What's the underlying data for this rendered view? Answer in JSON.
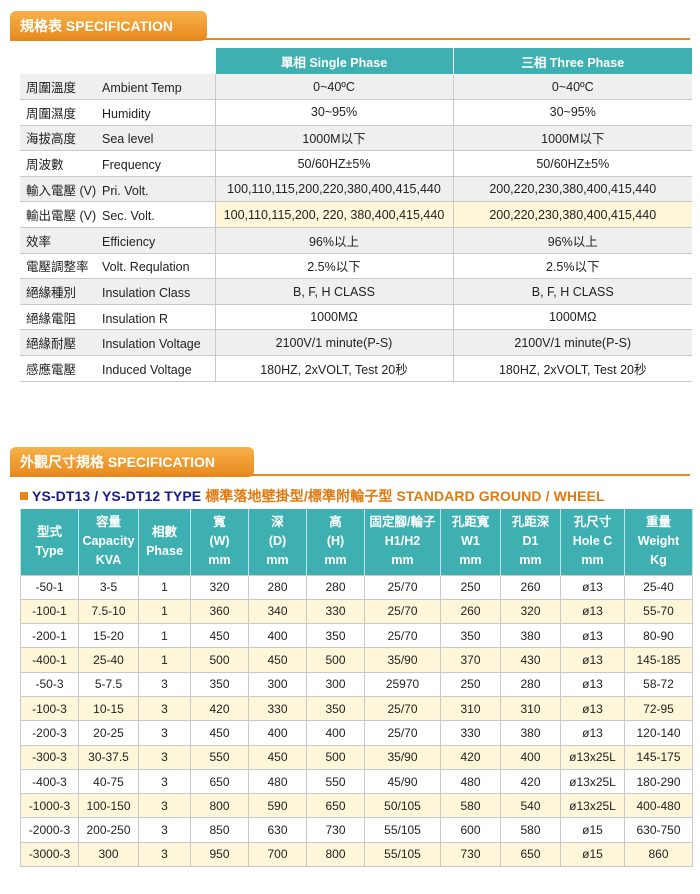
{
  "section1": {
    "title": "規格表 SPECIFICATION"
  },
  "spec_table": {
    "columns": [
      "單相 Single Phase",
      "三相 Three Phase"
    ],
    "rows": [
      {
        "zh": "周圍溫度",
        "en": "Ambient Temp",
        "single": "0~40ºC",
        "three": "0~40ºC"
      },
      {
        "zh": "周圍濕度",
        "en": "Humidity",
        "single": "30~95%",
        "three": "30~95%"
      },
      {
        "zh": "海拔高度",
        "en": "Sea level",
        "single": "1000M以下",
        "three": "1000M以下"
      },
      {
        "zh": "周波數",
        "en": "Frequency",
        "single": "50/60HZ±5%",
        "three": "50/60HZ±5%"
      },
      {
        "zh": "輸入電壓 (V)",
        "en": "Pri. Volt.",
        "single": "100,110,115,200,220,380,400,415,440",
        "three": "200,220,230,380,400,415,440"
      },
      {
        "zh": "輸出電壓 (V)",
        "en": "Sec. Volt.",
        "single": "100,110,115,200, 220, 380,400,415,440",
        "three": "200,220,230,380,400,415,440"
      },
      {
        "zh": "效率",
        "en": "Efficiency",
        "single": "96%以上",
        "three": "96%以上"
      },
      {
        "zh": "電壓調整率",
        "en": "Volt. Requlation",
        "single": "2.5%以下",
        "three": "2.5%以下"
      },
      {
        "zh": "絕緣種別",
        "en": "Insulation Class",
        "single": "B, F, H CLASS",
        "three": "B, F, H CLASS"
      },
      {
        "zh": "絕緣電阻",
        "en": "Insulation R",
        "single": "1000MΩ",
        "three": "1000MΩ"
      },
      {
        "zh": "絕緣耐壓",
        "en": "Insulation Voltage",
        "single": "2100V/1 minute(P-S)",
        "three": "2100V/1 minute(P-S)"
      },
      {
        "zh": "感應電壓",
        "en": "Induced Voltage",
        "single": "180HZ, 2xVOLT, Test 20秒",
        "three": "180HZ, 2xVOLT, Test 20秒"
      }
    ]
  },
  "section2": {
    "title": "外觀尺寸規格 SPECIFICATION"
  },
  "dim_title": {
    "part1": "YS-DT13 / YS-DT12 TYPE",
    "part2": " 標準落地壁掛型/標準附輪子型 STANDARD GROUND / WHEEL"
  },
  "dim_table": {
    "headers": [
      [
        "型式",
        "Type"
      ],
      [
        "容量",
        "Capacity",
        "KVA"
      ],
      [
        "相數",
        "Phase"
      ],
      [
        "寬",
        "(W)",
        "mm"
      ],
      [
        "深",
        "(D)",
        "mm"
      ],
      [
        "高",
        "(H)",
        "mm"
      ],
      [
        "固定腳/輪子",
        "H1/H2",
        "mm"
      ],
      [
        "孔距寬",
        "W1",
        "mm"
      ],
      [
        "孔距深",
        "D1",
        "mm"
      ],
      [
        "孔尺寸",
        "Hole C",
        "mm"
      ],
      [
        "重量",
        "Weight",
        "Kg"
      ]
    ],
    "rows": [
      [
        "-50-1",
        "3-5",
        "1",
        "320",
        "280",
        "280",
        "25/70",
        "250",
        "260",
        "ø13",
        "25-40"
      ],
      [
        "-100-1",
        "7.5-10",
        "1",
        "360",
        "340",
        "330",
        "25/70",
        "260",
        "320",
        "ø13",
        "55-70"
      ],
      [
        "-200-1",
        "15-20",
        "1",
        "450",
        "400",
        "350",
        "25/70",
        "350",
        "380",
        "ø13",
        "80-90"
      ],
      [
        "-400-1",
        "25-40",
        "1",
        "500",
        "450",
        "500",
        "35/90",
        "370",
        "430",
        "ø13",
        "145-185"
      ],
      [
        "-50-3",
        "5-7.5",
        "3",
        "350",
        "300",
        "300",
        "25970",
        "250",
        "280",
        "ø13",
        "58-72"
      ],
      [
        "-100-3",
        "10-15",
        "3",
        "420",
        "330",
        "350",
        "25/70",
        "310",
        "310",
        "ø13",
        "72-95"
      ],
      [
        "-200-3",
        "20-25",
        "3",
        "450",
        "400",
        "400",
        "25/70",
        "330",
        "380",
        "ø13",
        "120-140"
      ],
      [
        "-300-3",
        "30-37.5",
        "3",
        "550",
        "450",
        "500",
        "35/90",
        "420",
        "400",
        "ø13x25L",
        "145-175"
      ],
      [
        "-400-3",
        "40-75",
        "3",
        "650",
        "480",
        "550",
        "45/90",
        "480",
        "420",
        "ø13x25L",
        "180-290"
      ],
      [
        "-1000-3",
        "100-150",
        "3",
        "800",
        "590",
        "650",
        "50/105",
        "580",
        "540",
        "ø13x25L",
        "400-480"
      ],
      [
        "-2000-3",
        "200-250",
        "3",
        "850",
        "630",
        "730",
        "55/105",
        "600",
        "580",
        "ø15",
        "630-750"
      ],
      [
        "-3000-3",
        "300",
        "3",
        "950",
        "700",
        "800",
        "55/105",
        "730",
        "650",
        "ø15",
        "860"
      ]
    ]
  }
}
